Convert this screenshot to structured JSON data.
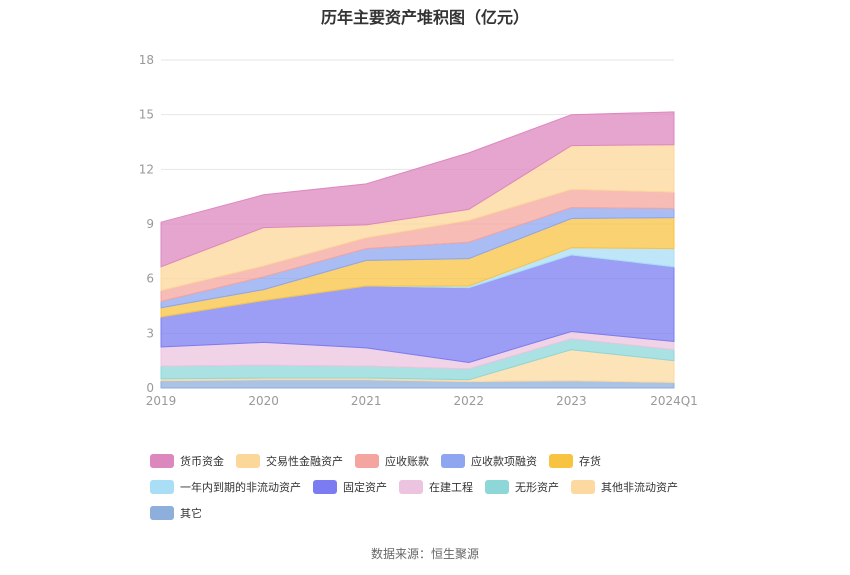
{
  "chart_data": {
    "type": "area",
    "stacked": true,
    "title": "历年主要资产堆积图（亿元）",
    "x": [
      "2019",
      "2020",
      "2021",
      "2022",
      "2023",
      "2024Q1"
    ],
    "ylim": [
      0,
      18
    ],
    "yticks": [
      0,
      3,
      6,
      9,
      12,
      15,
      18
    ],
    "grid": true,
    "legend_position": "bottom",
    "series": [
      {
        "name": "其它",
        "color": "#8eaedb",
        "values": [
          0.4,
          0.45,
          0.45,
          0.35,
          0.4,
          0.3
        ]
      },
      {
        "name": "其他非流动资产",
        "color": "#fbd9a0",
        "values": [
          0.1,
          0.1,
          0.1,
          0.1,
          1.7,
          1.2
        ]
      },
      {
        "name": "无形资产",
        "color": "#8dd7d9",
        "values": [
          0.7,
          0.7,
          0.65,
          0.6,
          0.6,
          0.6
        ]
      },
      {
        "name": "在建工程",
        "color": "#ecc4df",
        "values": [
          1.05,
          1.25,
          1.0,
          0.35,
          0.4,
          0.45
        ]
      },
      {
        "name": "固定资产",
        "color": "#7b7cf1",
        "values": [
          1.65,
          2.3,
          3.4,
          4.1,
          4.2,
          4.1
        ]
      },
      {
        "name": "一年内到期的非流动资产",
        "color": "#a9def6",
        "values": [
          0.0,
          0.0,
          0.0,
          0.1,
          0.4,
          1.0
        ]
      },
      {
        "name": "存货",
        "color": "#f8c341",
        "values": [
          0.5,
          0.6,
          1.4,
          1.5,
          1.6,
          1.7
        ]
      },
      {
        "name": "应收款项融资",
        "color": "#8ea6f0",
        "values": [
          0.35,
          0.7,
          0.65,
          0.9,
          0.6,
          0.5
        ]
      },
      {
        "name": "应收账款",
        "color": "#f5a59f",
        "values": [
          0.6,
          0.6,
          0.6,
          1.2,
          1.0,
          0.9
        ]
      },
      {
        "name": "交易性金融资产",
        "color": "#fcd79a",
        "values": [
          1.3,
          2.1,
          0.7,
          0.6,
          2.4,
          2.6
        ]
      },
      {
        "name": "货币资金",
        "color": "#dd87bf",
        "values": [
          2.45,
          1.8,
          2.25,
          3.1,
          1.7,
          1.8
        ]
      }
    ]
  },
  "legend": [
    [
      {
        "name": "货币资金",
        "color": "#dd87bf"
      },
      {
        "name": "交易性金融资产",
        "color": "#fcd79a"
      },
      {
        "name": "应收账款",
        "color": "#f5a59f"
      },
      {
        "name": "应收款项融资",
        "color": "#8ea6f0"
      },
      {
        "name": "存货",
        "color": "#f8c341"
      }
    ],
    [
      {
        "name": "一年内到期的非流动资产",
        "color": "#a9def6"
      },
      {
        "name": "固定资产",
        "color": "#7b7cf1"
      },
      {
        "name": "在建工程",
        "color": "#ecc4df"
      },
      {
        "name": "无形资产",
        "color": "#8dd7d9"
      },
      {
        "name": "其他非流动资产",
        "color": "#fbd9a0"
      }
    ],
    [
      {
        "name": "其它",
        "color": "#8eaedb"
      }
    ]
  ],
  "source_text": "数据来源：恒生聚源"
}
